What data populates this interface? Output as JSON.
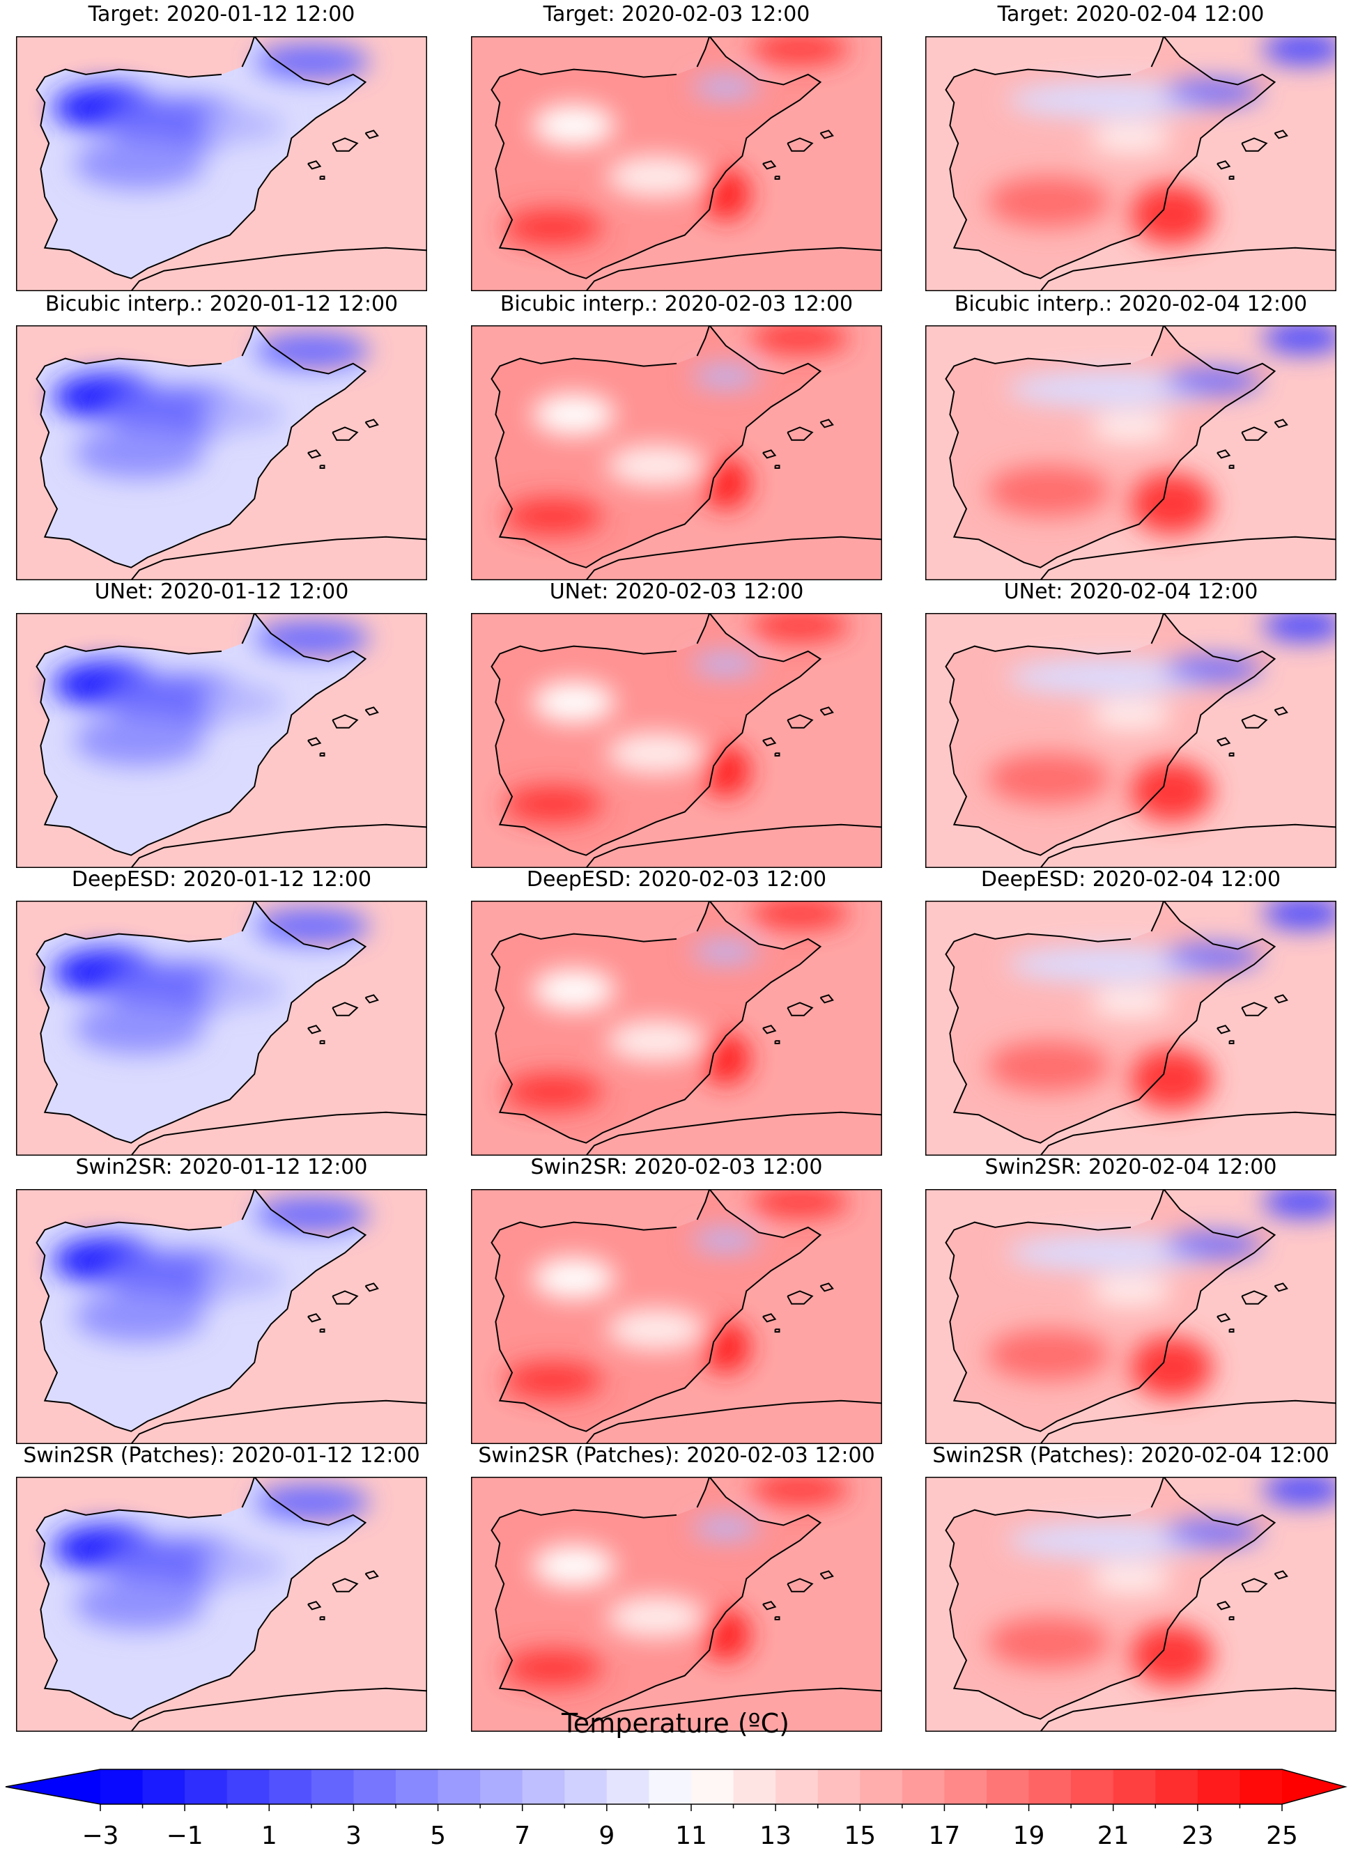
{
  "chart_data": {
    "type": "heatmap",
    "description_grid": "6 rows (methods) x 3 columns (dates) of gridded temperature maps over the Iberian Peninsula",
    "rows": [
      "Target",
      "Bicubic interp.",
      "UNet",
      "DeepESD",
      "Swin2SR",
      "Swin2SR (Patches)"
    ],
    "columns": [
      "2020-01-12 12:00",
      "2020-02-03 12:00",
      "2020-02-04 12:00"
    ],
    "panels": [
      {
        "title": "Target: 2020-01-12 12:00",
        "method": "Target",
        "date": "2020-01-12 12:00",
        "tone": "cold"
      },
      {
        "title": "Target: 2020-02-03 12:00",
        "method": "Target",
        "date": "2020-02-03 12:00",
        "tone": "warm"
      },
      {
        "title": "Target: 2020-02-04 12:00",
        "method": "Target",
        "date": "2020-02-04 12:00",
        "tone": "mixed"
      },
      {
        "title": "Bicubic interp.: 2020-01-12 12:00",
        "method": "Bicubic interp.",
        "date": "2020-01-12 12:00",
        "tone": "cold"
      },
      {
        "title": "Bicubic interp.: 2020-02-03 12:00",
        "method": "Bicubic interp.",
        "date": "2020-02-03 12:00",
        "tone": "warm"
      },
      {
        "title": "Bicubic interp.: 2020-02-04 12:00",
        "method": "Bicubic interp.",
        "date": "2020-02-04 12:00",
        "tone": "mixed"
      },
      {
        "title": "UNet: 2020-01-12 12:00",
        "method": "UNet",
        "date": "2020-01-12 12:00",
        "tone": "cold"
      },
      {
        "title": "UNet: 2020-02-03 12:00",
        "method": "UNet",
        "date": "2020-02-03 12:00",
        "tone": "warm"
      },
      {
        "title": "UNet: 2020-02-04 12:00",
        "method": "UNet",
        "date": "2020-02-04 12:00",
        "tone": "mixed"
      },
      {
        "title": "DeepESD: 2020-01-12 12:00",
        "method": "DeepESD",
        "date": "2020-01-12 12:00",
        "tone": "cold"
      },
      {
        "title": "DeepESD: 2020-02-03 12:00",
        "method": "DeepESD",
        "date": "2020-02-03 12:00",
        "tone": "warm"
      },
      {
        "title": "DeepESD: 2020-02-04 12:00",
        "method": "DeepESD",
        "date": "2020-02-04 12:00",
        "tone": "mixed"
      },
      {
        "title": "Swin2SR: 2020-01-12 12:00",
        "method": "Swin2SR",
        "date": "2020-01-12 12:00",
        "tone": "cold"
      },
      {
        "title": "Swin2SR: 2020-02-03 12:00",
        "method": "Swin2SR",
        "date": "2020-02-03 12:00",
        "tone": "warm"
      },
      {
        "title": "Swin2SR: 2020-02-04 12:00",
        "method": "Swin2SR",
        "date": "2020-02-04 12:00",
        "tone": "mixed"
      },
      {
        "title": "Swin2SR (Patches): 2020-01-12 12:00",
        "method": "Swin2SR (Patches)",
        "date": "2020-01-12 12:00",
        "tone": "cold"
      },
      {
        "title": "Swin2SR (Patches): 2020-02-03 12:00",
        "method": "Swin2SR (Patches)",
        "date": "2020-02-03 12:00",
        "tone": "warm"
      },
      {
        "title": "Swin2SR (Patches): 2020-02-04 12:00",
        "method": "Swin2SR (Patches)",
        "date": "2020-02-04 12:00",
        "tone": "mixed"
      }
    ],
    "colorbar": {
      "label": "Temperature (ºC)",
      "vmin": -3,
      "vmax": 25,
      "step": 1,
      "extend": "both",
      "cmap": "bwr",
      "ticks": [
        -3,
        -1,
        1,
        3,
        5,
        7,
        9,
        11,
        13,
        15,
        17,
        19,
        21,
        23,
        25
      ],
      "tick_labels": [
        "−3",
        "−1",
        "1",
        "3",
        "5",
        "7",
        "9",
        "11",
        "13",
        "15",
        "17",
        "19",
        "21",
        "23",
        "25"
      ]
    },
    "colors": {
      "cold_end": "#0000ff",
      "mid": "#ffffff",
      "warm_end": "#ff0000",
      "coastline": "#000000"
    }
  }
}
